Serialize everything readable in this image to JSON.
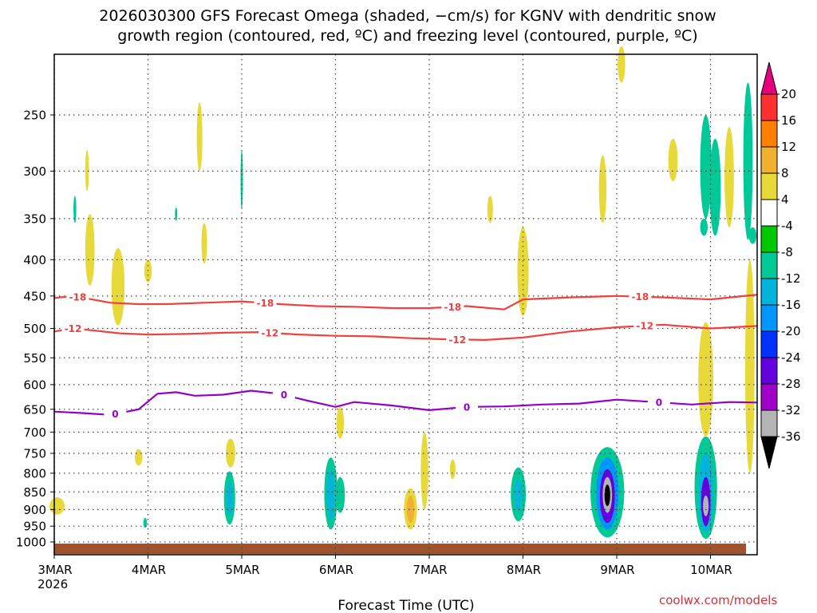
{
  "chart_data": {
    "type": "heatmap",
    "title_line1": "2026030300 GFS Forecast Omega (shaded, −cm/s) for KGNV with dendritic snow",
    "title_line2": "growth region (contoured, red, ºC) and freezing level (contoured, purple, ºC)",
    "xlabel": "Forecast Time (UTC)",
    "credit": "coolwx.com/models",
    "x_ticks": [
      "3MAR",
      "4MAR",
      "5MAR",
      "6MAR",
      "7MAR",
      "8MAR",
      "9MAR",
      "10MAR"
    ],
    "x_first_year": "2026",
    "xlim_days": [
      0,
      7.5
    ],
    "y_ticks": [
      250,
      300,
      350,
      400,
      450,
      500,
      550,
      600,
      650,
      700,
      750,
      800,
      850,
      900,
      950,
      1000
    ],
    "ylim_hpa": [
      200,
      1025
    ],
    "colorbar": {
      "labels": [
        "20",
        "16",
        "12",
        "8",
        "4",
        "-4",
        "-8",
        "-12",
        "-16",
        "-20",
        "-24",
        "-28",
        "-32",
        "-36"
      ],
      "colors": [
        "#e5007d",
        "#ff3030",
        "#ff7f00",
        "#f0b030",
        "#e8d93a",
        "#ffffff",
        "#00c800",
        "#00c896",
        "#00b4dc",
        "#0096ff",
        "#0032ff",
        "#6400e0",
        "#a000c8",
        "#b4b4b4",
        "#000000"
      ]
    },
    "contours": [
      {
        "name": "dgz -18C",
        "label": "-18",
        "color": "#f04040",
        "x": [
          0,
          0.2,
          0.4,
          0.6,
          0.9,
          1.2,
          1.6,
          2.0,
          2.4,
          2.8,
          3.2,
          3.6,
          4.0,
          4.4,
          4.8,
          5.0,
          5.5,
          6.0,
          6.5,
          7.0,
          7.5
        ],
        "y": [
          453,
          450,
          455,
          460,
          462,
          462,
          460,
          458,
          462,
          465,
          466,
          468,
          468,
          465,
          470,
          455,
          452,
          450,
          452,
          455,
          448
        ],
        "label_x": [
          0.25,
          2.25,
          4.25,
          6.25
        ]
      },
      {
        "name": "dgz -12C",
        "label": "-12",
        "color": "#f04040",
        "x": [
          0,
          0.2,
          0.4,
          0.7,
          1.0,
          1.4,
          1.8,
          2.2,
          2.6,
          3.0,
          3.4,
          3.8,
          4.2,
          4.6,
          5.0,
          5.5,
          6.0,
          6.5,
          7.0,
          7.5
        ],
        "y": [
          505,
          500,
          503,
          508,
          510,
          509,
          507,
          506,
          510,
          512,
          513,
          516,
          518,
          519,
          515,
          505,
          498,
          494,
          500,
          496
        ],
        "label_x": [
          0.2,
          2.3,
          4.3,
          6.3
        ]
      },
      {
        "name": "freezing level 0C",
        "label": "0",
        "color": "#9400c8",
        "x": [
          0,
          0.3,
          0.6,
          0.9,
          1.1,
          1.3,
          1.5,
          1.8,
          2.1,
          2.4,
          2.7,
          3.0,
          3.2,
          3.6,
          4.0,
          4.4,
          4.8,
          5.2,
          5.6,
          6.0,
          6.4,
          6.8,
          7.2,
          7.5
        ],
        "y": [
          655,
          658,
          662,
          650,
          618,
          615,
          622,
          620,
          612,
          618,
          632,
          645,
          635,
          642,
          652,
          645,
          644,
          640,
          638,
          630,
          635,
          640,
          635,
          636
        ],
        "label_x": [
          0.65,
          2.45,
          4.4,
          6.45
        ]
      }
    ],
    "omega_patches": [
      {
        "day": 0.03,
        "hpa": 890,
        "dh": 50,
        "dd": 0.08,
        "v": 6
      },
      {
        "day": 0.38,
        "hpa": 390,
        "dh": 90,
        "dd": 0.05,
        "v": 5
      },
      {
        "day": 0.68,
        "hpa": 440,
        "dh": 110,
        "dd": 0.07,
        "v": 5
      },
      {
        "day": 0.35,
        "hpa": 300,
        "dh": 40,
        "dd": 0.02,
        "v": 4
      },
      {
        "day": 0.22,
        "hpa": 340,
        "dh": 30,
        "dd": 0.015,
        "v": -8
      },
      {
        "day": 1.0,
        "hpa": 415,
        "dh": 30,
        "dd": 0.04,
        "v": 4
      },
      {
        "day": 1.3,
        "hpa": 345,
        "dh": 15,
        "dd": 0.01,
        "v": -8
      },
      {
        "day": 0.9,
        "hpa": 760,
        "dh": 40,
        "dd": 0.04,
        "v": 5
      },
      {
        "day": 0.97,
        "hpa": 940,
        "dh": 30,
        "dd": 0.02,
        "v": -8
      },
      {
        "day": 1.55,
        "hpa": 270,
        "dh": 60,
        "dd": 0.03,
        "v": 5
      },
      {
        "day": 1.6,
        "hpa": 380,
        "dh": 50,
        "dd": 0.03,
        "v": 5
      },
      {
        "day": 1.88,
        "hpa": 750,
        "dh": 70,
        "dd": 0.05,
        "v": 5
      },
      {
        "day": 1.87,
        "hpa": 870,
        "dh": 150,
        "dd": 0.06,
        "v": -8
      },
      {
        "day": 1.87,
        "hpa": 870,
        "dh": 100,
        "dd": 0.03,
        "v": -12
      },
      {
        "day": 2.0,
        "hpa": 310,
        "dh": 60,
        "dd": 0.01,
        "v": -8
      },
      {
        "day": 2.95,
        "hpa": 860,
        "dh": 200,
        "dd": 0.07,
        "v": -8
      },
      {
        "day": 2.95,
        "hpa": 860,
        "dh": 140,
        "dd": 0.04,
        "v": -12
      },
      {
        "day": 3.05,
        "hpa": 860,
        "dh": 100,
        "dd": 0.05,
        "v": -8
      },
      {
        "day": 3.05,
        "hpa": 680,
        "dh": 70,
        "dd": 0.04,
        "v": 5
      },
      {
        "day": 3.8,
        "hpa": 900,
        "dh": 120,
        "dd": 0.07,
        "v": 6
      },
      {
        "day": 3.8,
        "hpa": 900,
        "dh": 80,
        "dd": 0.04,
        "v": 9
      },
      {
        "day": 3.95,
        "hpa": 800,
        "dh": 200,
        "dd": 0.04,
        "v": 5
      },
      {
        "day": 4.25,
        "hpa": 790,
        "dh": 50,
        "dd": 0.03,
        "v": 5
      },
      {
        "day": 4.95,
        "hpa": 860,
        "dh": 150,
        "dd": 0.08,
        "v": -8
      },
      {
        "day": 4.95,
        "hpa": 860,
        "dh": 90,
        "dd": 0.04,
        "v": -12
      },
      {
        "day": 5.0,
        "hpa": 420,
        "dh": 120,
        "dd": 0.06,
        "v": 6
      },
      {
        "day": 4.65,
        "hpa": 340,
        "dh": 30,
        "dd": 0.03,
        "v": 5
      },
      {
        "day": 5.85,
        "hpa": 320,
        "dh": 70,
        "dd": 0.04,
        "v": 5
      },
      {
        "day": 6.05,
        "hpa": 210,
        "dh": 30,
        "dd": 0.04,
        "v": 5
      },
      {
        "day": 5.9,
        "hpa": 860,
        "dh": 250,
        "dd": 0.18,
        "v": -8
      },
      {
        "day": 5.9,
        "hpa": 860,
        "dh": 200,
        "dd": 0.12,
        "v": -16
      },
      {
        "day": 5.9,
        "hpa": 865,
        "dh": 150,
        "dd": 0.08,
        "v": -24
      },
      {
        "day": 5.9,
        "hpa": 860,
        "dh": 100,
        "dd": 0.05,
        "v": -32
      },
      {
        "day": 5.9,
        "hpa": 860,
        "dh": 60,
        "dd": 0.03,
        "v": -36
      },
      {
        "day": 6.6,
        "hpa": 290,
        "dh": 40,
        "dd": 0.05,
        "v": 5
      },
      {
        "day": 6.95,
        "hpa": 850,
        "dh": 280,
        "dd": 0.12,
        "v": -8
      },
      {
        "day": 6.95,
        "hpa": 860,
        "dh": 220,
        "dd": 0.08,
        "v": -12
      },
      {
        "day": 6.95,
        "hpa": 880,
        "dh": 140,
        "dd": 0.05,
        "v": -24
      },
      {
        "day": 6.95,
        "hpa": 890,
        "dh": 60,
        "dd": 0.03,
        "v": -32
      },
      {
        "day": 6.95,
        "hpa": 600,
        "dh": 220,
        "dd": 0.08,
        "v": 5
      },
      {
        "day": 6.95,
        "hpa": 300,
        "dh": 100,
        "dd": 0.06,
        "v": -8
      },
      {
        "day": 7.05,
        "hpa": 320,
        "dh": 100,
        "dd": 0.06,
        "v": -8
      },
      {
        "day": 7.2,
        "hpa": 310,
        "dh": 100,
        "dd": 0.05,
        "v": 5
      },
      {
        "day": 6.93,
        "hpa": 360,
        "dh": 20,
        "dd": 0.04,
        "v": -8
      },
      {
        "day": 7.4,
        "hpa": 300,
        "dh": 150,
        "dd": 0.05,
        "v": -8
      },
      {
        "day": 7.42,
        "hpa": 600,
        "dh": 400,
        "dd": 0.05,
        "v": 5
      },
      {
        "day": 7.45,
        "hpa": 370,
        "dh": 20,
        "dd": 0.04,
        "v": -8
      }
    ]
  }
}
